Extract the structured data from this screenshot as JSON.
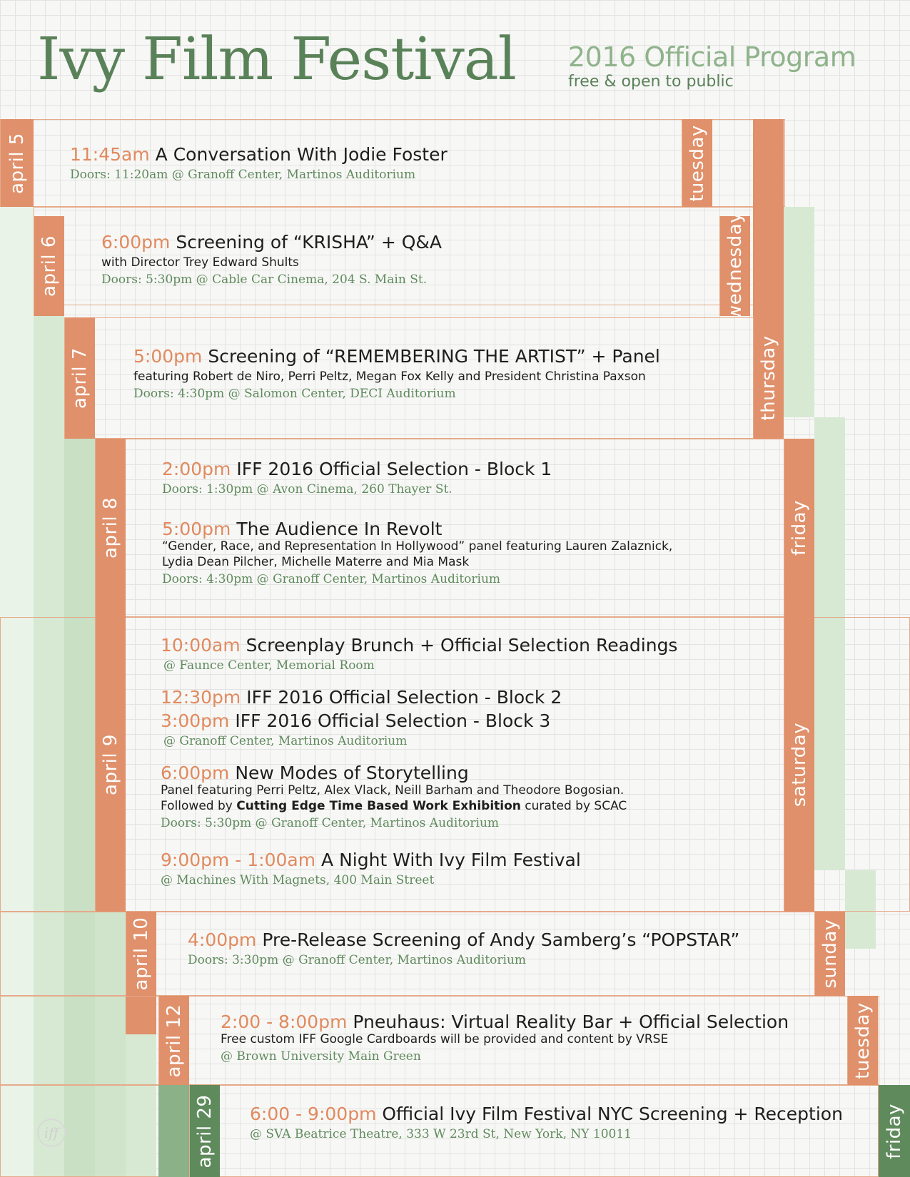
{
  "header": {
    "title": "Ivy Film Festival",
    "program": "2016 Official Program",
    "subtitle": "free & open to public"
  },
  "logo_text": "iff",
  "days": [
    {
      "date": "april 5",
      "weekday": "tuesday",
      "events": [
        {
          "time": "11:45am",
          "title": "A Conversation With Jodie Foster",
          "doors": "Doors: 11:20am @ Granoff Center, Martinos Auditorium"
        }
      ]
    },
    {
      "date": "april 6",
      "weekday": "wednesday",
      "events": [
        {
          "time": "6:00pm",
          "title": "Screening of “KRISHA” + Q&A",
          "detail": "with Director Trey Edward Shults",
          "doors": "Doors: 5:30pm @ Cable Car Cinema, 204 S. Main St."
        }
      ]
    },
    {
      "date": "april 7",
      "weekday": "thursday",
      "events": [
        {
          "time": "5:00pm",
          "title": "Screening of “REMEMBERING THE ARTIST” + Panel",
          "detail": "featuring Robert de Niro, Perri Peltz, Megan Fox Kelly and President Christina Paxson",
          "doors": "Doors: 4:30pm @ Salomon Center, DECI Auditorium"
        }
      ]
    },
    {
      "date": "april 8",
      "weekday": "friday",
      "events": [
        {
          "time": "2:00pm",
          "title": "IFF 2016 Official Selection - Block 1",
          "doors": "Doors: 1:30pm @ Avon Cinema, 260 Thayer St."
        },
        {
          "time": "5:00pm",
          "title": "The Audience In Revolt",
          "detail_1": "“Gender, Race, and Representation In Hollywood” panel featuring Lauren Zalaznick,",
          "detail_2": "Lydia Dean Pilcher, Michelle Materre and Mia Mask",
          "doors": "Doors: 4:30pm @ Granoff Center, Martinos Auditorium"
        }
      ]
    },
    {
      "date": "april 9",
      "weekday": "saturday",
      "events": [
        {
          "time": "10:00am",
          "title": "Screenplay Brunch + Official Selection Readings",
          "doors": "@ Faunce Center, Memorial Room"
        },
        {
          "time": "12:30pm",
          "title": "IFF 2016 Official Selection - Block 2"
        },
        {
          "time": "3:00pm",
          "title": "IFF 2016 Official Selection - Block 3",
          "doors": "@ Granoff Center, Martinos Auditorium"
        },
        {
          "time": "6:00pm",
          "title": "New Modes of Storytelling",
          "detail_1": "Panel featuring Perri Peltz, Alex Vlack, Neill Barham and Theodore Bogosian.",
          "detail_2_pre": "Followed by ",
          "detail_2_bold": "Cutting Edge Time Based Work Exhibition",
          "detail_2_post": " curated by SCAC",
          "doors": "Doors: 5:30pm @ Granoff Center, Martinos Auditorium"
        },
        {
          "time": "9:00pm - 1:00am",
          "title": "A Night With Ivy Film Festival",
          "doors": "@ Machines With Magnets, 400 Main Street"
        }
      ]
    },
    {
      "date": "april 10",
      "weekday": "sunday",
      "events": [
        {
          "time": "4:00pm",
          "title": "Pre-Release Screening of Andy Samberg’s “POPSTAR”",
          "doors": "Doors: 3:30pm @ Granoff Center, Martinos Auditorium"
        }
      ]
    },
    {
      "date": "april 12",
      "weekday": "tuesday",
      "events": [
        {
          "time": "2:00 - 8:00pm",
          "title": "Pneuhaus: Virtual Reality Bar + Official Selection",
          "detail": "Free custom IFF Google Cardboards will be provided and content by VRSE",
          "doors": "@ Brown University Main Green"
        }
      ]
    },
    {
      "date": "april 29",
      "weekday": "friday",
      "events": [
        {
          "time": "6:00 - 9:00pm",
          "title": "Official Ivy Film Festival NYC Screening + Reception",
          "doors": "@ SVA Beatrice Theatre,  333 W 23rd St, New York, NY 10011"
        }
      ]
    }
  ],
  "colors": {
    "accent_orange": "#e0906a",
    "accent_green": "#5a8259",
    "light_green": "#d7e9d3"
  }
}
